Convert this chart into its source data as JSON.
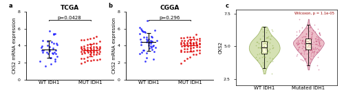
{
  "fig_width": 5.0,
  "fig_height": 1.41,
  "panel_a": {
    "title": "TCGA",
    "pvalue": "p=0.0428",
    "ylabel": "CKS2 mRNA expression",
    "xlabel_left": "WT IDH1",
    "xlabel_right": "MUT IDH1",
    "ylim": [
      0,
      8
    ],
    "yticks": [
      0,
      2,
      4,
      6,
      8
    ],
    "wt_mean": 3.7,
    "wt_sd": 1.1,
    "wt_n": 35,
    "mut_mean": 3.5,
    "mut_sd": 0.7,
    "mut_n": 55,
    "wt_color": "#1a1aff",
    "mut_color": "#dd0000",
    "seed_wt": 42,
    "seed_mut": 7
  },
  "panel_b": {
    "title": "CGGA",
    "pvalue": "p=0.296",
    "ylabel": "CKS2 mRNA expression",
    "xlabel_left": "WT IDH1",
    "xlabel_right": "MUT IDH1",
    "ylim": [
      0,
      8
    ],
    "yticks": [
      0,
      2,
      4,
      6,
      8
    ],
    "wt_mean": 4.3,
    "wt_sd": 1.1,
    "wt_n": 45,
    "mut_mean": 4.0,
    "mut_sd": 0.65,
    "mut_n": 55,
    "wt_color": "#1a1aff",
    "mut_color": "#dd0000",
    "seed_wt": 10,
    "seed_mut": 20
  },
  "panel_c": {
    "annot": "Wilcoxon, p = 1.1e-05",
    "ylabel": "CKS2",
    "xlabel_left": "WT IDH1",
    "xlabel_right": "Mutated IDH1",
    "ylim": [
      2.0,
      7.8
    ],
    "yticks": [
      2.5,
      5.0,
      7.5
    ],
    "wt_mean": 5.0,
    "wt_sd": 0.75,
    "wt_n": 80,
    "mut_mean": 5.2,
    "mut_sd": 0.65,
    "mut_n": 160,
    "wt_violin_color": "#c8d89a",
    "wt_dot_color": "#8aaa40",
    "wt_edge_color": "#7a9930",
    "mut_violin_color": "#e8a8b8",
    "mut_dot_color": "#c04070",
    "mut_edge_color": "#a03060",
    "seed_wt": 33,
    "seed_mut": 44
  },
  "label_fontsize": 5,
  "title_fontsize": 6.5,
  "tick_fontsize": 4.5,
  "pvalue_fontsize": 5,
  "annot_fontsize": 3.8
}
